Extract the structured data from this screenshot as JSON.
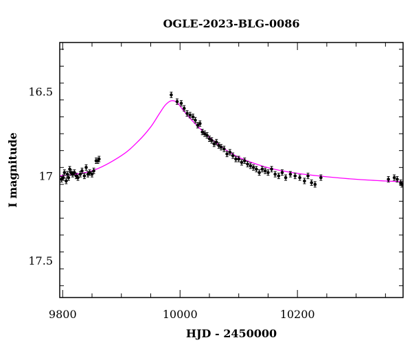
{
  "chart_data": {
    "type": "scatter",
    "title": "OGLE-2023-BLG-0086",
    "xlabel": "HJD - 2450000",
    "ylabel": "I magnitude",
    "xlim": [
      9795,
      10380
    ],
    "ylim": [
      17.72,
      16.21
    ],
    "y_inverted": true,
    "x_ticks": [
      9800,
      10000,
      10200
    ],
    "x_tick_labels": [
      "9800",
      "10000",
      "10200"
    ],
    "y_ticks": [
      16.5,
      17,
      17.5
    ],
    "y_tick_labels": [
      "16.5",
      "17",
      "17.5"
    ],
    "grid": false,
    "legend": "none",
    "colors": {
      "points": "#000000",
      "model": "#ff00ff"
    },
    "model": {
      "name": "",
      "type": "microlensing-fit",
      "baseline_mag": 17.06,
      "peak_mag": 16.54,
      "peak_x": 9985,
      "x": [
        9795,
        9850,
        9900,
        9930,
        9950,
        9965,
        9975,
        9985,
        9995,
        10005,
        10020,
        10040,
        10060,
        10080,
        10100,
        10130,
        10160,
        10200,
        10250,
        10300,
        10350,
        10380
      ],
      "y": [
        17.0,
        16.97,
        16.88,
        16.79,
        16.71,
        16.63,
        16.58,
        16.555,
        16.565,
        16.61,
        16.67,
        16.74,
        16.8,
        16.85,
        16.89,
        16.93,
        16.96,
        16.985,
        17.005,
        17.02,
        17.03,
        17.035
      ]
    },
    "series": [
      {
        "x": [
          9798,
          9801,
          9803,
          9806,
          9808,
          9810,
          9812,
          9814,
          9817,
          9820,
          9823,
          9826,
          9830,
          9833,
          9837,
          9840,
          9843,
          9846,
          9850,
          9853,
          9857,
          9860,
          9862,
          9985,
          9995,
          10002,
          10007,
          10012,
          10017,
          10022,
          10026,
          10030,
          10034,
          10038,
          10042,
          10046,
          10050,
          10054,
          10058,
          10062,
          10066,
          10070,
          10075,
          10080,
          10085,
          10090,
          10095,
          10100,
          10105,
          10110,
          10115,
          10120,
          10125,
          10130,
          10135,
          10140,
          10145,
          10150,
          10156,
          10162,
          10168,
          10174,
          10180,
          10188,
          10196,
          10204,
          10212,
          10218,
          10224,
          10230,
          10240,
          10355,
          10365,
          10370,
          10376,
          10378
        ],
        "y": [
          17.02,
          17.01,
          16.98,
          17.03,
          16.99,
          17.01,
          16.96,
          16.98,
          16.99,
          16.98,
          17.0,
          17.01,
          16.99,
          16.97,
          17.0,
          16.95,
          16.99,
          16.98,
          16.99,
          16.97,
          16.91,
          16.91,
          16.9,
          16.52,
          16.56,
          16.57,
          16.6,
          16.63,
          16.64,
          16.65,
          16.67,
          16.7,
          16.69,
          16.74,
          16.75,
          16.76,
          16.78,
          16.79,
          16.81,
          16.8,
          16.82,
          16.83,
          16.84,
          16.87,
          16.86,
          16.88,
          16.9,
          16.9,
          16.92,
          16.91,
          16.93,
          16.94,
          16.95,
          16.96,
          16.98,
          16.96,
          16.97,
          16.98,
          16.96,
          16.99,
          17.0,
          16.98,
          17.01,
          16.99,
          17.0,
          17.01,
          17.03,
          17.0,
          17.04,
          17.05,
          17.01,
          17.02,
          17.01,
          17.02,
          17.04,
          17.05
        ]
      }
    ]
  }
}
